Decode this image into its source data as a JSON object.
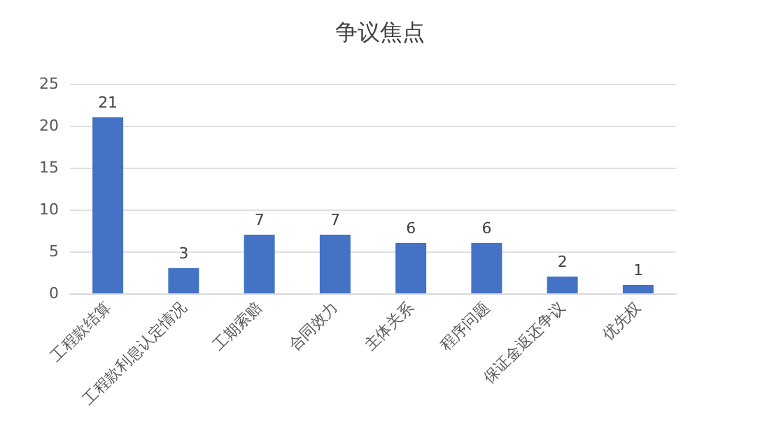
{
  "chart_data": {
    "type": "bar",
    "title": "争议焦点",
    "categories": [
      "工程款结算",
      "工程款利息认定情况",
      "工期索赔",
      "合同效力",
      "主体关系",
      "程序问题",
      "保证金返还争议",
      "优先权"
    ],
    "values": [
      21,
      3,
      7,
      7,
      6,
      6,
      2,
      1
    ],
    "color": "#4472c4",
    "ylim": [
      0,
      25
    ],
    "yticks": [
      0,
      5,
      10,
      15,
      20,
      25
    ],
    "grid": "y",
    "data_labels": true
  }
}
